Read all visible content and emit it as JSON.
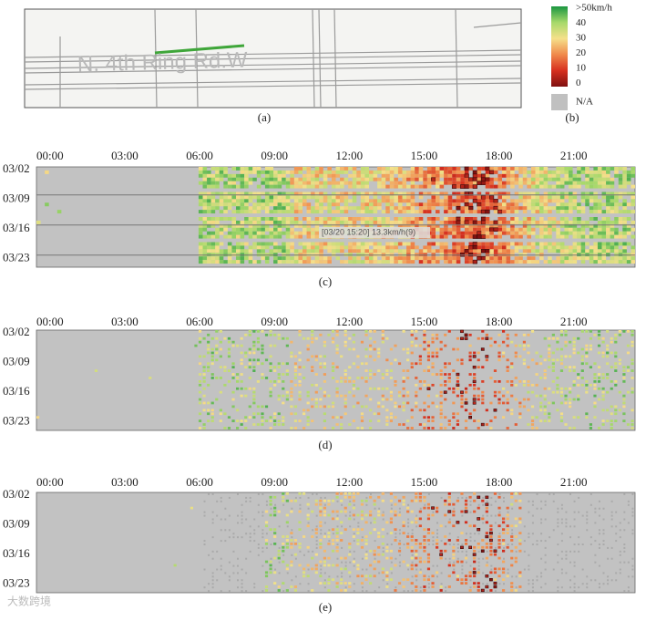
{
  "map": {
    "road_label": "N. 4th Ring Rd.W",
    "panel": "(a)"
  },
  "legend": {
    "panel": "(b)",
    "labels": [
      ">50km/h",
      "40",
      "30",
      "20",
      "10",
      "0"
    ],
    "na": "N/A"
  },
  "heatmaps": [
    {
      "panel": "(c)",
      "tooltip": "[03/20 15:20] 13.3km/h(9)"
    },
    {
      "panel": "(d)"
    },
    {
      "panel": "(e)"
    }
  ],
  "time_labels": [
    "00:00",
    "03:00",
    "06:00",
    "09:00",
    "12:00",
    "15:00",
    "18:00",
    "21:00"
  ],
  "date_labels": [
    "03/02",
    "03/09",
    "03/16",
    "03/23"
  ],
  "watermark": "大数跨境"
}
